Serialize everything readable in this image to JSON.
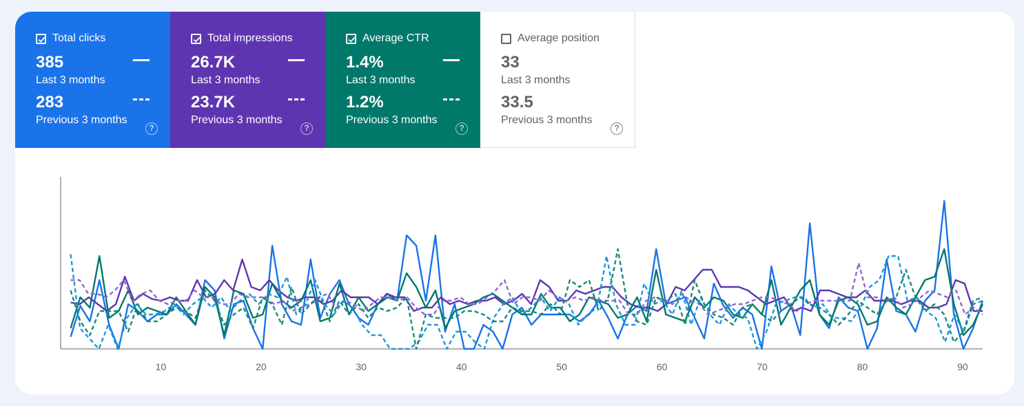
{
  "tiles": [
    {
      "name": "Total clicks",
      "checked": true,
      "color": "#1a73e8",
      "value": "385",
      "period": "Last 3 months",
      "prev_value": "283",
      "prev_period": "Previous 3 months"
    },
    {
      "name": "Total impressions",
      "checked": true,
      "color": "#5e35b1",
      "value": "26.7K",
      "period": "Last 3 months",
      "prev_value": "23.7K",
      "prev_period": "Previous 3 months"
    },
    {
      "name": "Average CTR",
      "checked": true,
      "color": "#00796b",
      "value": "1.4%",
      "period": "Last 3 months",
      "prev_value": "1.2%",
      "prev_period": "Previous 3 months"
    },
    {
      "name": "Average position",
      "checked": false,
      "color": "#e8710a",
      "value": "33",
      "period": "Last 3 months",
      "prev_value": "33.5",
      "prev_period": "Previous 3 months"
    }
  ],
  "help_icon": "?",
  "chart_data": {
    "type": "line",
    "x_ticks": [
      10,
      20,
      30,
      40,
      50,
      60,
      70,
      80,
      90
    ],
    "xlim": [
      0,
      92
    ],
    "ylim": [
      0,
      100
    ],
    "grid": false,
    "series": [
      {
        "color": "#1a73e8",
        "dashed": false,
        "values": [
          7,
          25,
          16,
          40,
          14,
          0,
          26,
          22,
          16,
          20,
          20,
          26,
          20,
          14,
          40,
          34,
          6,
          26,
          28,
          12,
          0,
          60,
          26,
          16,
          14,
          52,
          18,
          32,
          40,
          26,
          18,
          14,
          26,
          32,
          28,
          66,
          60,
          28,
          66,
          10,
          26,
          0,
          0,
          14,
          10,
          0,
          20,
          24,
          14,
          20,
          20,
          20,
          20,
          16,
          20,
          28,
          18,
          6,
          20,
          25,
          22,
          58,
          26,
          28,
          30,
          18,
          6,
          38,
          25,
          18,
          24,
          20,
          0,
          48,
          22,
          26,
          8,
          73,
          20,
          12,
          30,
          24,
          22,
          0,
          12,
          52,
          22,
          20,
          10,
          28,
          34,
          86,
          20,
          0,
          12,
          28
        ]
      },
      {
        "color": "#5e35b1",
        "dashed": false,
        "values": [
          27,
          26,
          30,
          26,
          22,
          26,
          42,
          28,
          32,
          29,
          28,
          30,
          28,
          28,
          40,
          30,
          32,
          40,
          34,
          52,
          36,
          34,
          40,
          34,
          30,
          28,
          30,
          30,
          26,
          28,
          34,
          30,
          30,
          30,
          26,
          32,
          30,
          30,
          22,
          24,
          24,
          30,
          26,
          28,
          26,
          28,
          28,
          30,
          26,
          28,
          32,
          26,
          40,
          36,
          28,
          28,
          34,
          32,
          34,
          36,
          36,
          30,
          26,
          24,
          24,
          22,
          26,
          36,
          34,
          40,
          46,
          46,
          36,
          36,
          36,
          34,
          30,
          26,
          28,
          30,
          22,
          24,
          22,
          34,
          34,
          32,
          30,
          30,
          34,
          28,
          28,
          28,
          26,
          28,
          28,
          24,
          24,
          26,
          40,
          38,
          22,
          22
        ]
      },
      {
        "color": "#00796b",
        "dashed": false,
        "values": [
          12,
          30,
          24,
          54,
          18,
          22,
          34,
          20,
          24,
          22,
          20,
          30,
          22,
          14,
          36,
          30,
          8,
          34,
          32,
          18,
          20,
          38,
          28,
          24,
          28,
          40,
          16,
          18,
          38,
          20,
          30,
          22,
          26,
          30,
          28,
          44,
          36,
          24,
          34,
          12,
          22,
          24,
          26,
          30,
          32,
          28,
          24,
          20,
          20,
          32,
          24,
          24,
          16,
          20,
          30,
          28,
          26,
          18,
          20,
          30,
          16,
          46,
          20,
          18,
          16,
          30,
          24,
          30,
          28,
          20,
          18,
          26,
          20,
          40,
          14,
          24,
          34,
          40,
          20,
          14,
          28,
          30,
          26,
          14,
          16,
          30,
          24,
          20,
          30,
          40,
          42,
          58,
          26,
          8,
          14,
          26
        ]
      },
      {
        "color": "#8e67d6",
        "dashed": true,
        "values": [
          40,
          40,
          32,
          32,
          30,
          34,
          40,
          28,
          32,
          34,
          28,
          26,
          28,
          28,
          34,
          30,
          30,
          26,
          26,
          32,
          30,
          30,
          30,
          26,
          28,
          22,
          24,
          26,
          30,
          32,
          24,
          28,
          26,
          22,
          26,
          30,
          30,
          28,
          30,
          24,
          20,
          20,
          28,
          28,
          30,
          26,
          26,
          30,
          34,
          40,
          26,
          30,
          30,
          28,
          34,
          30,
          28,
          30,
          28,
          30,
          28,
          28,
          28,
          20,
          20,
          28,
          30,
          28,
          26,
          32,
          28,
          26,
          20,
          22,
          24,
          26,
          26,
          28,
          30,
          30,
          28,
          26,
          22,
          26,
          28,
          28,
          28,
          28,
          28,
          50,
          30,
          30,
          28,
          30,
          24,
          26,
          30,
          34,
          32,
          30,
          34,
          20,
          24,
          20
        ]
      },
      {
        "color": "#1b97d8",
        "dashed": true,
        "values": [
          55,
          12,
          6,
          0,
          14,
          0,
          18,
          26,
          20,
          20,
          22,
          26,
          20,
          26,
          30,
          24,
          30,
          22,
          28,
          32,
          26,
          32,
          30,
          42,
          20,
          26,
          40,
          26,
          20,
          28,
          24,
          14,
          8,
          8,
          0,
          0,
          0,
          4,
          14,
          14,
          0,
          10,
          10,
          4,
          0,
          18,
          26,
          30,
          20,
          24,
          30,
          22,
          30,
          26,
          14,
          20,
          24,
          54,
          26,
          14,
          14,
          38,
          26,
          28,
          20,
          34,
          14,
          30,
          20,
          14,
          26,
          20,
          18,
          0,
          10,
          26,
          28,
          30,
          30,
          24,
          26,
          18,
          18,
          16,
          24,
          36,
          40,
          54,
          54,
          28,
          30,
          22,
          18,
          4,
          20,
          10,
          26,
          28
        ]
      },
      {
        "color": "#17897a",
        "dashed": true,
        "values": [
          34,
          16,
          8,
          22,
          22,
          22,
          10,
          26,
          16,
          16,
          20,
          24,
          22,
          18,
          34,
          28,
          14,
          20,
          24,
          12,
          30,
          26,
          14,
          36,
          20,
          26,
          30,
          16,
          28,
          20,
          26,
          18,
          24,
          22,
          24,
          30,
          0,
          20,
          18,
          18,
          18,
          22,
          22,
          20,
          16,
          16,
          24,
          22,
          22,
          20,
          26,
          20,
          40,
          36,
          40,
          22,
          30,
          58,
          26,
          16,
          14,
          30,
          28,
          32,
          14,
          40,
          26,
          20,
          18,
          14,
          24,
          26,
          20,
          16,
          22,
          26,
          30,
          26,
          24,
          20,
          14,
          20,
          28,
          24,
          20,
          28,
          30,
          46,
          30,
          22,
          26,
          20,
          4,
          10,
          28,
          30
        ]
      }
    ]
  }
}
